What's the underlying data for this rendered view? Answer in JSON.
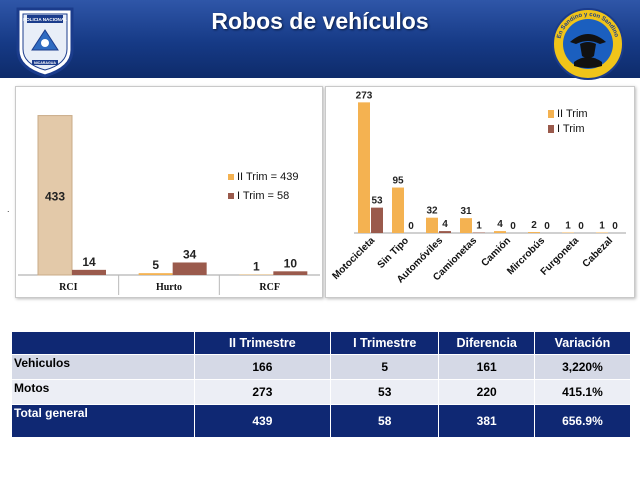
{
  "header": {
    "title": "Robos de vehículos"
  },
  "logos": {
    "left_text": "POLICIA NACIONAL",
    "left_subtext": "NICARAGUA",
    "right_text": "En Sandino y con Sandino"
  },
  "colors": {
    "header": "#163a86",
    "trim2": "#f4b251",
    "trim1": "#9a5a4c",
    "table_header": "#0f2873",
    "rci_bar": "#e3c9a9"
  },
  "chart_data": [
    {
      "type": "bar",
      "categories": [
        "RCI",
        "Hurto",
        "RCF"
      ],
      "series": [
        {
          "name": "II Trim = 439",
          "values": [
            433,
            5,
            1
          ]
        },
        {
          "name": "I Trim = 58",
          "values": [
            14,
            34,
            10
          ]
        }
      ],
      "legend_position": "right",
      "ylim": [
        0,
        440
      ]
    },
    {
      "type": "bar",
      "categories": [
        "Motocicleta",
        "Sin Tipo",
        "Automóviles",
        "Camionetas",
        "Camión",
        "Mircrobús",
        "Furgoneta",
        "Cabezal"
      ],
      "series": [
        {
          "name": "II Trim",
          "values": [
            273,
            95,
            32,
            31,
            4,
            2,
            1,
            1
          ]
        },
        {
          "name": "I Trim",
          "values": [
            53,
            0,
            4,
            1,
            0,
            0,
            0,
            0
          ]
        }
      ],
      "legend_position": "top-right",
      "ylim": [
        0,
        280
      ]
    }
  ],
  "table": {
    "headers": [
      "",
      "II Trimestre",
      "I Trimestre",
      "Diferencia",
      "Variación"
    ],
    "rows": [
      [
        "Vehiculos",
        "166",
        "5",
        "161",
        "3,220%"
      ],
      [
        "Motos",
        "273",
        "53",
        "220",
        "415.1%"
      ],
      [
        "Total general",
        "439",
        "58",
        "381",
        "656.9%"
      ]
    ]
  }
}
